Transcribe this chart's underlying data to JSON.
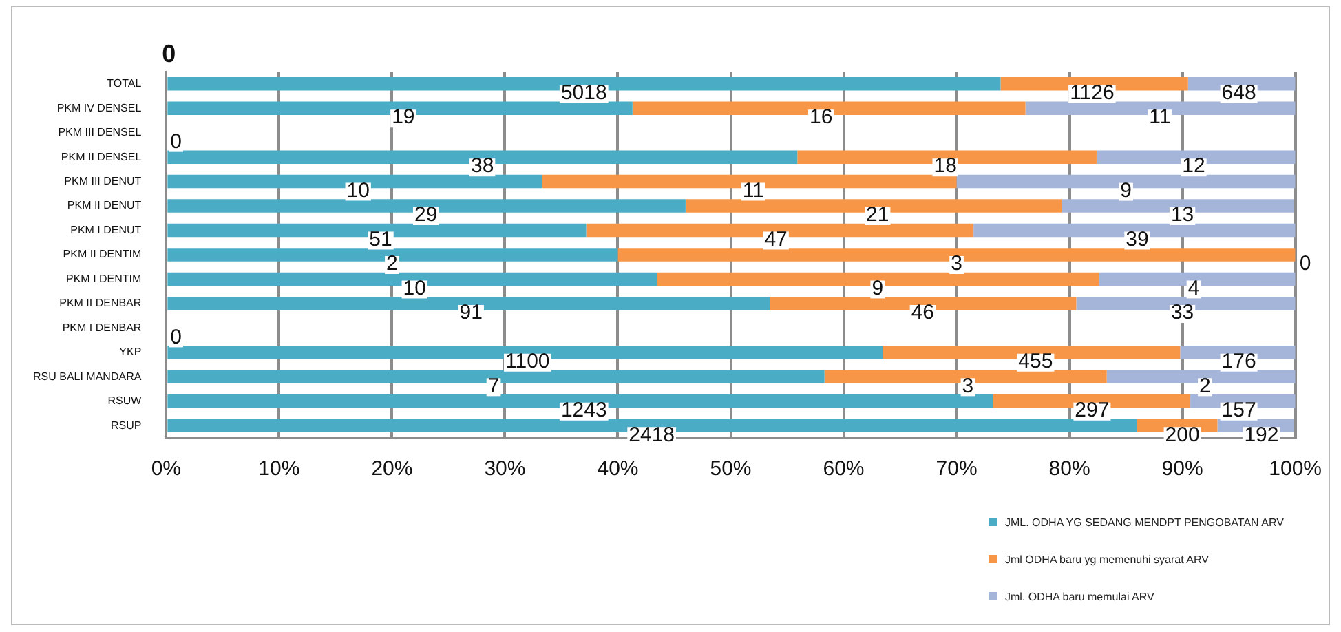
{
  "chart_data": {
    "type": "bar",
    "orientation": "horizontal",
    "stacked": true,
    "categories": [
      "TOTAL",
      "PKM IV DENSEL",
      "PKM III DENSEL",
      "PKM II DENSEL",
      "PKM III DENUT",
      "PKM II DENUT",
      "PKM I DENUT",
      "PKM II DENTIM",
      "PKM I DENTIM",
      "PKM II DENBAR",
      "PKM I DENBAR",
      "YKP",
      "RSU BALI MANDARA",
      "RSUW",
      "RSUP"
    ],
    "series": [
      {
        "name": "JML. ODHA YG SEDANG MENDPT PENGOBATAN ARV",
        "color": "#4bacc6",
        "values": [
          73.9,
          41.3,
          0,
          55.9,
          33.3,
          46.0,
          37.2,
          40,
          43.5,
          53.5,
          0,
          63.5,
          58.3,
          73.2,
          86.0
        ]
      },
      {
        "name": "Jml ODHA baru yg memenuhi syarat ARV",
        "color": "#f79646",
        "values": [
          16.6,
          34.8,
          0,
          26.5,
          36.7,
          33.3,
          34.3,
          60,
          39.1,
          27.1,
          0,
          26.3,
          25.0,
          17.5,
          7.1
        ]
      },
      {
        "name": "Jml. ODHA baru memulai ARV",
        "color": "#a5b4d9",
        "values": [
          9.5,
          23.9,
          0,
          17.6,
          30.0,
          20.6,
          28.5,
          null,
          17.4,
          19.4,
          0,
          10.2,
          16.7,
          9.3,
          6.8
        ]
      }
    ],
    "xlim": [
      0,
      100
    ],
    "xticks": [
      {
        "value": 0,
        "label": "0%"
      },
      {
        "value": 10,
        "label": "10%"
      },
      {
        "value": 20,
        "label": "20%"
      },
      {
        "value": 30,
        "label": "30%"
      },
      {
        "value": 40,
        "label": "40%"
      },
      {
        "value": 50,
        "label": "50%"
      },
      {
        "value": 60,
        "label": "60%"
      },
      {
        "value": 70,
        "label": "70%"
      },
      {
        "value": 80,
        "label": "80%"
      },
      {
        "value": 90,
        "label": "90%"
      },
      {
        "value": 100,
        "label": "100%"
      }
    ],
    "grid": "x",
    "legend": "bottom right",
    "annotations": [
      "0",
      {
        "text": "5018",
        "x": 37,
        "y": "TOTAL"
      },
      {
        "text": "1126",
        "x": 82,
        "y": "TOTAL"
      },
      {
        "text": "648",
        "x": 95,
        "y": "TOTAL"
      },
      {
        "text": "19",
        "x": 21,
        "y": "PKM IV DENSEL"
      },
      {
        "text": "16",
        "x": 58,
        "y": "PKM IV DENSEL"
      },
      {
        "text": "11",
        "x": 88,
        "y": "PKM IV DENSEL"
      },
      {
        "text": "0",
        "x": 0,
        "y": "PKM III DENSEL"
      },
      {
        "text": "38",
        "x": 28,
        "y": "PKM II DENSEL"
      },
      {
        "text": "18",
        "x": 69,
        "y": "PKM II DENSEL"
      },
      {
        "text": "12",
        "x": 91,
        "y": "PKM II DENSEL"
      },
      {
        "text": "10",
        "x": 17,
        "y": "PKM III DENUT"
      },
      {
        "text": "11",
        "x": 52,
        "y": "PKM III DENUT"
      },
      {
        "text": "9",
        "x": 85,
        "y": "PKM III DENUT"
      },
      {
        "text": "29",
        "x": 23,
        "y": "PKM II DENUT"
      },
      {
        "text": "21",
        "x": 63,
        "y": "PKM II DENUT"
      },
      {
        "text": "13",
        "x": 90,
        "y": "PKM II DENUT"
      },
      {
        "text": "51",
        "x": 19,
        "y": "PKM I DENUT"
      },
      {
        "text": "47",
        "x": 54,
        "y": "PKM I DENUT"
      },
      {
        "text": "39",
        "x": 86,
        "y": "PKM I DENUT"
      },
      {
        "text": "2",
        "x": 20,
        "y": "PKM II DENTIM"
      },
      {
        "text": "3",
        "x": 70,
        "y": "PKM II DENTIM"
      },
      {
        "text": "0",
        "x": 100,
        "y": "PKM II DENTIM"
      },
      {
        "text": "10",
        "x": 22,
        "y": "PKM I DENTIM"
      },
      {
        "text": "9",
        "x": 63,
        "y": "PKM I DENTIM"
      },
      {
        "text": "4",
        "x": 91,
        "y": "PKM I DENTIM"
      },
      {
        "text": "91",
        "x": 27,
        "y": "PKM II DENBAR"
      },
      {
        "text": "46",
        "x": 67,
        "y": "PKM II DENBAR"
      },
      {
        "text": "33",
        "x": 90,
        "y": "PKM II DENBAR"
      },
      {
        "text": "0",
        "x": 0,
        "y": "PKM I DENBAR"
      },
      {
        "text": "1100",
        "x": 32,
        "y": "YKP"
      },
      {
        "text": "455",
        "x": 77,
        "y": "YKP"
      },
      {
        "text": "176",
        "x": 95,
        "y": "YKP"
      },
      {
        "text": "7",
        "x": 29,
        "y": "RSU BALI MANDARA"
      },
      {
        "text": "3",
        "x": 71,
        "y": "RSU BALI MANDARA"
      },
      {
        "text": "2",
        "x": 92,
        "y": "RSU BALI MANDARA"
      },
      {
        "text": "1243",
        "x": 37,
        "y": "RSUW"
      },
      {
        "text": "297",
        "x": 82,
        "y": "RSUW"
      },
      {
        "text": "157",
        "x": 95,
        "y": "RSUW"
      },
      {
        "text": "2418",
        "x": 43,
        "y": "RSUP"
      },
      {
        "text": "200",
        "x": 90,
        "y": "RSUP"
      },
      {
        "text": "192",
        "x": 97,
        "y": "RSUP"
      }
    ]
  }
}
